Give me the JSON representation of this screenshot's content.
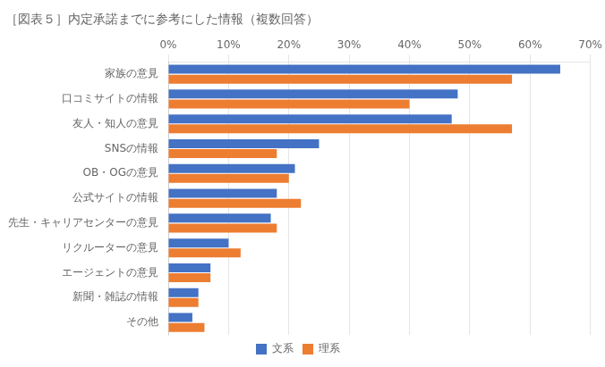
{
  "chart_data": {
    "type": "bar",
    "orientation": "horizontal",
    "title": "［図表５］内定承諾までに参考にした情報（複数回答）",
    "categories": [
      "家族の意見",
      "口コミサイトの情報",
      "友人・知人の意見",
      "SNSの情報",
      "OB・OGの意見",
      "公式サイトの情報",
      "先生・キャリアセンターの意見",
      "リクルーターの意見",
      "エージェントの意見",
      "新聞・雑誌の情報",
      "その他"
    ],
    "series": [
      {
        "name": "文系",
        "color": "#4472C4",
        "values": [
          65,
          48,
          47,
          25,
          21,
          18,
          17,
          10,
          7,
          5,
          4
        ]
      },
      {
        "name": "理系",
        "color": "#ED7D31",
        "values": [
          57,
          40,
          57,
          18,
          20,
          22,
          18,
          12,
          7,
          5,
          6
        ]
      }
    ],
    "xlim": [
      0,
      70
    ],
    "xticks": [
      {
        "value": 0,
        "label": "0%"
      },
      {
        "value": 10,
        "label": "10%"
      },
      {
        "value": 20,
        "label": "20%"
      },
      {
        "value": 30,
        "label": "30%"
      },
      {
        "value": 40,
        "label": "40%"
      },
      {
        "value": 50,
        "label": "50%"
      },
      {
        "value": 60,
        "label": "60%"
      },
      {
        "value": 70,
        "label": "70%"
      }
    ],
    "grid": true,
    "legend": "bottom"
  }
}
